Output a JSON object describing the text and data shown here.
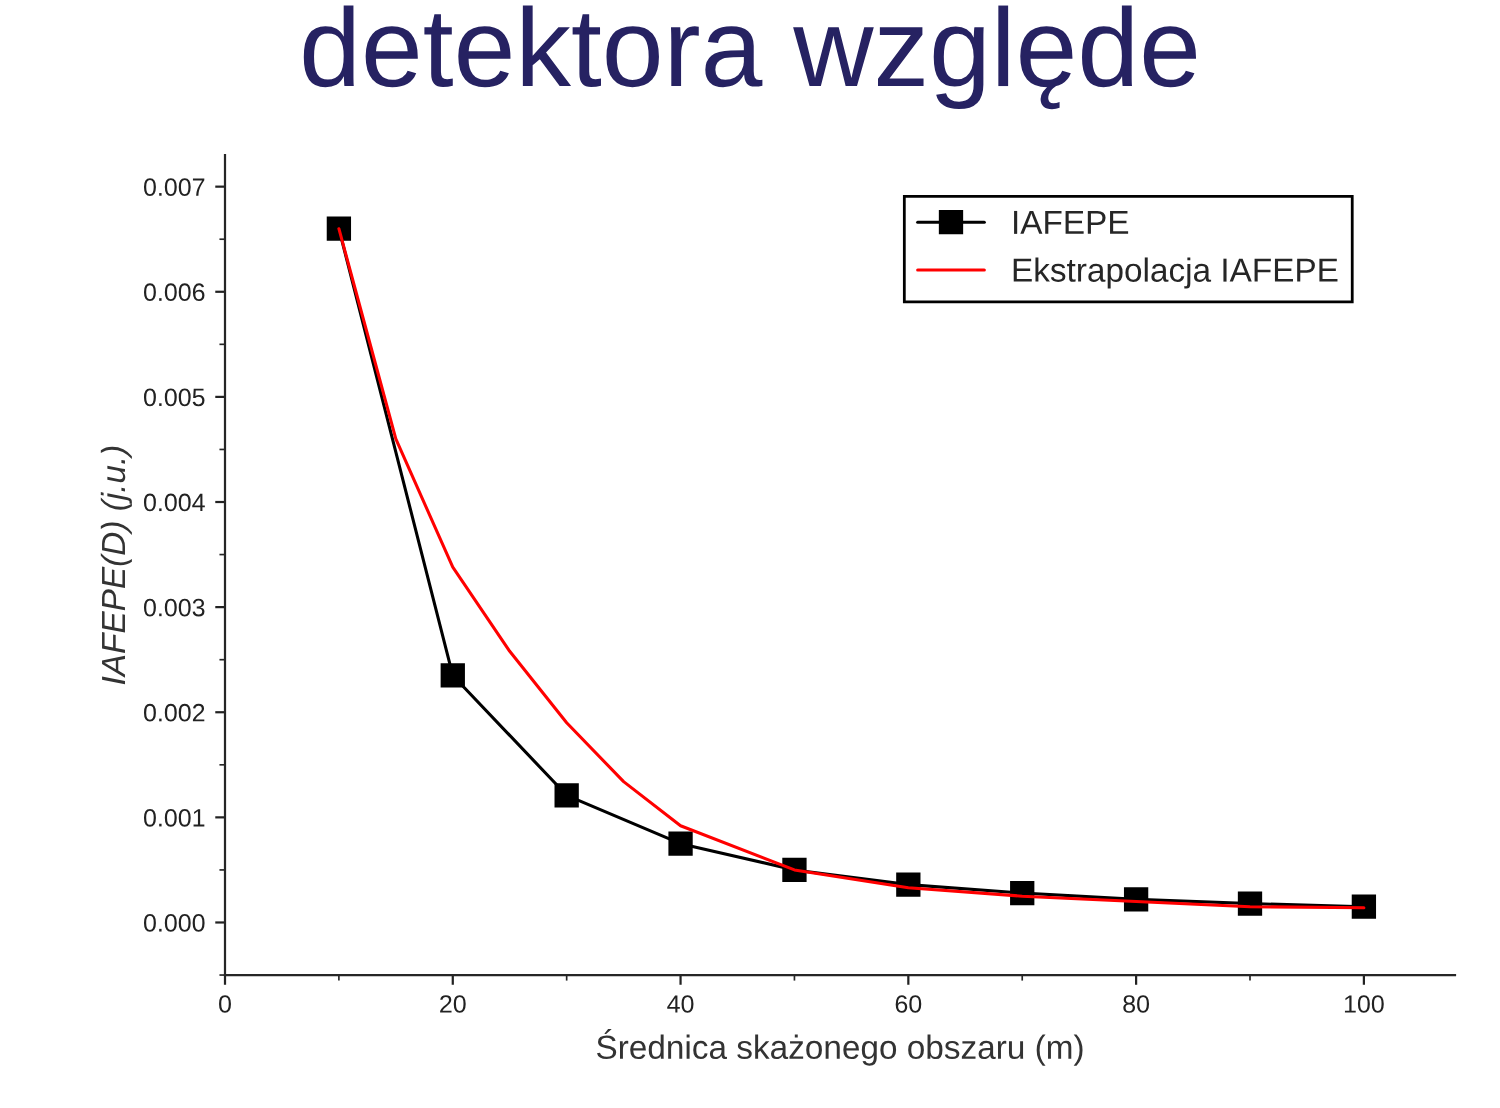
{
  "chart_data": {
    "type": "line",
    "title": "detektora względe",
    "xlabel": "Średnica skażonego obszaru (m)",
    "ylabel": "IAFEPE(D) (j.u.)",
    "series": [
      {
        "name": "IAFEPE",
        "color": "#000000",
        "marker": "square",
        "x": [
          10,
          20,
          30,
          40,
          50,
          60,
          70,
          80,
          90,
          100
        ],
        "values": [
          0.0066,
          0.00235,
          0.00121,
          0.00075,
          0.0005,
          0.00036,
          0.00028,
          0.00022,
          0.00018,
          0.00015
        ]
      },
      {
        "name": "Ekstrapolacja IAFEPE",
        "color": "#ff0000",
        "marker": "none",
        "x": [
          10,
          15,
          20,
          25,
          30,
          35,
          40,
          50,
          60,
          70,
          80,
          90,
          100
        ],
        "values": [
          0.0066,
          0.0046,
          0.00338,
          0.00258,
          0.0019,
          0.00134,
          0.00092,
          0.0005,
          0.00033,
          0.00025,
          0.0002,
          0.00015,
          0.00014
        ]
      }
    ],
    "xlim": [
      0,
      108
    ],
    "xticks": [
      0,
      20,
      40,
      60,
      80,
      100
    ],
    "ylim": [
      -0.0005,
      0.0073
    ],
    "yticks": [
      {
        "value": 0,
        "label": "0.000"
      },
      {
        "value": 0.001,
        "label": "0.001"
      },
      {
        "value": 0.002,
        "label": "0.002"
      },
      {
        "value": 0.003,
        "label": "0.003"
      },
      {
        "value": 0.004,
        "label": "0.004"
      },
      {
        "value": 0.005,
        "label": "0.005"
      },
      {
        "value": 0.006,
        "label": "0.006"
      },
      {
        "value": 0.007,
        "label": "0.007"
      }
    ],
    "grid": false,
    "legend": "top right",
    "line_style": "solid"
  }
}
